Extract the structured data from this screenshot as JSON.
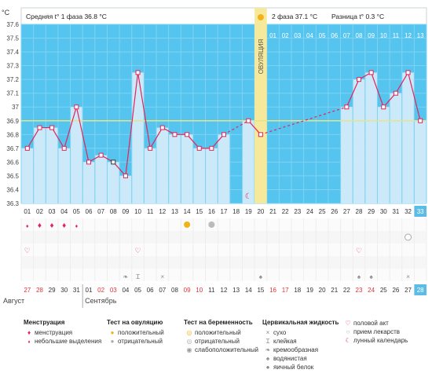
{
  "header": {
    "unit": "°C",
    "phase1": "Средняя t° 1 фаза 36.8 °C",
    "phase2": "2 фаза 37.1 °C",
    "diff": "Разница t° 0.3 °C"
  },
  "colors": {
    "plot_bg": "#55c4ef",
    "chart_line": "#e3245a",
    "bar_fill": "#cbe9f9",
    "ovulation_band": "#f7e99b",
    "coverline": "#e6e48a",
    "header_bg": "#ffffff",
    "day_red": "#e0333a",
    "today_bg": "#5bbde5"
  },
  "chart_data": {
    "type": "line",
    "title": "",
    "xlabel": "",
    "ylabel": "°C",
    "ylim": [
      36.3,
      37.6
    ],
    "yticks": [
      "37.6",
      "37.5",
      "37.4",
      "37.3",
      "37.2",
      "37.1",
      "37",
      "36.9",
      "36.8",
      "36.7",
      "36.6",
      "36.5",
      "36.4",
      "36.3"
    ],
    "cycle_days": [
      "01",
      "02",
      "03",
      "04",
      "05",
      "06",
      "07",
      "08",
      "09",
      "10",
      "11",
      "12",
      "13",
      "14",
      "15",
      "16",
      "17",
      "18",
      "19",
      "20",
      "21",
      "22",
      "23",
      "24",
      "25",
      "26",
      "27",
      "28",
      "29",
      "30",
      "31",
      "32",
      "33"
    ],
    "phase2_days": [
      "01",
      "02",
      "03",
      "04",
      "05",
      "06",
      "07",
      "08",
      "09",
      "10",
      "11",
      "12",
      "13"
    ],
    "dates": [
      "27",
      "28",
      "29",
      "30",
      "31",
      "01",
      "02",
      "03",
      "04",
      "05",
      "06",
      "07",
      "08",
      "09",
      "10",
      "11",
      "12",
      "13",
      "14",
      "15",
      "16",
      "17",
      "18",
      "19",
      "20",
      "21",
      "22",
      "23",
      "24",
      "25",
      "26",
      "27",
      "28"
    ],
    "red_date_indices": [
      0,
      1,
      6,
      7,
      13,
      14,
      20,
      21,
      27,
      28
    ],
    "months": [
      "Август",
      "Сентябрь"
    ],
    "coverline": 36.9,
    "ovulation_day": 20,
    "ovulation_label": "ОВУЛЯЦИЯ",
    "series": [
      {
        "values": [
          36.7,
          36.85,
          36.85,
          36.7,
          37.0,
          36.6,
          36.65,
          36.6,
          36.5,
          37.25,
          36.7,
          36.85,
          36.8,
          36.8,
          36.7,
          36.7,
          36.8,
          null,
          36.9,
          36.8,
          null,
          null,
          null,
          null,
          null,
          null,
          37.0,
          37.2,
          37.25,
          37.0,
          37.1,
          37.25,
          36.9
        ]
      }
    ],
    "disturbed_days": [
      8
    ],
    "bars_to_day": 20
  },
  "markers": {
    "menstruation": [
      {
        "day": 1,
        "kind": "light"
      },
      {
        "day": 2,
        "kind": "heavy"
      },
      {
        "day": 3,
        "kind": "heavy"
      },
      {
        "day": 4,
        "kind": "heavy"
      },
      {
        "day": 5,
        "kind": "light"
      }
    ],
    "ovulation_test": [
      {
        "day": 14,
        "kind": "positive"
      },
      {
        "day": 16,
        "kind": "negative"
      }
    ],
    "pregnancy_test": [
      {
        "day": 32,
        "kind": "negative"
      }
    ],
    "sex": [
      1,
      10,
      28
    ],
    "mucus": [
      {
        "day": 9,
        "kind": "creamy"
      },
      {
        "day": 10,
        "kind": "sticky"
      },
      {
        "day": 12,
        "kind": "dry"
      },
      {
        "day": 20,
        "kind": "watery"
      },
      {
        "day": 28,
        "kind": "watery"
      },
      {
        "day": 29,
        "kind": "watery"
      },
      {
        "day": 32,
        "kind": "dry"
      }
    ],
    "moon_day": 19
  },
  "legend": {
    "menstruation": {
      "title": "Менструация",
      "items": [
        "менструация",
        "небольшие выделения"
      ]
    },
    "ovulation_test": {
      "title": "Тест на овуляцию",
      "items": [
        "положительный",
        "отрицательный"
      ]
    },
    "pregnancy_test": {
      "title": "Тест на беременность",
      "items": [
        "положительный",
        "отрицательный",
        "слабоположительный"
      ]
    },
    "mucus": {
      "title": "Цервикальная жидкость",
      "items": [
        "сухо",
        "клейкая",
        "кремообразная",
        "водянистая",
        "яичный белок"
      ]
    },
    "other": {
      "items": [
        "половой акт",
        "прием лекарств",
        "лунный календарь"
      ]
    }
  }
}
